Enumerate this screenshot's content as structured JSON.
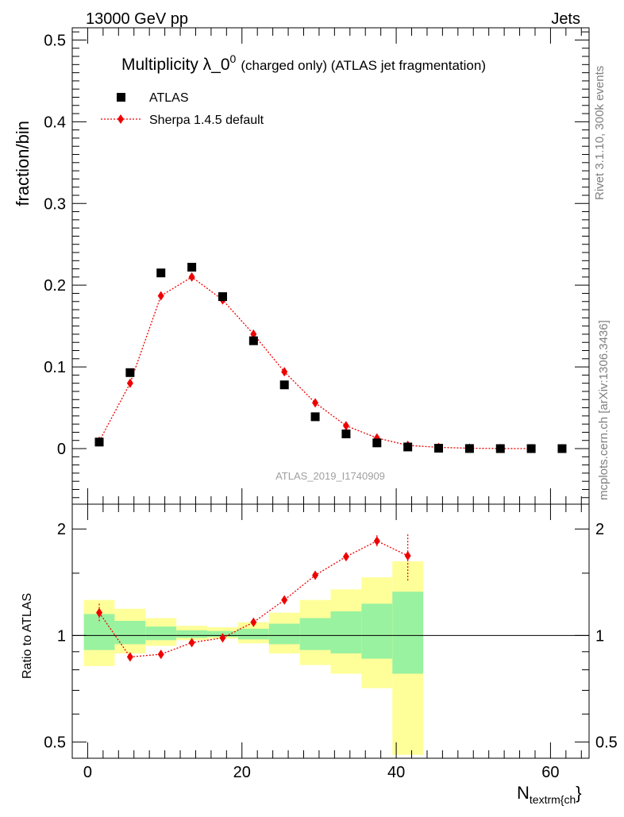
{
  "header": {
    "energy_label": "13000 GeV pp",
    "category_label": "Jets",
    "side_info": "Rivet 3.1.10,  300k events",
    "side_ref": "mcplots.cern.ch [arXiv:1306.3436]",
    "watermark": "ATLAS_2019_I1740909"
  },
  "chart_data": {
    "type": "scatter",
    "title": "Multiplicity λ_0",
    "title_superscript": "0",
    "title_suffix": "(charged only) (ATLAS jet fragmentation)",
    "ylabel": "fraction/bin",
    "xlabel_main": "N",
    "xlabel_sub": "textrm{ch",
    "xlabel_close": "}",
    "ratio_ylabel": "Ratio to ATLAS",
    "xlim": [
      -2,
      65
    ],
    "ylim": [
      -0.068,
      0.515
    ],
    "ratio_ylim": [
      0.45,
      2.35
    ],
    "x_ticks": [
      "0",
      "20",
      "40",
      "60"
    ],
    "y_ticks": [
      "0",
      "0.1",
      "0.2",
      "0.3",
      "0.4",
      "0.5"
    ],
    "ratio_ticks": [
      "0.5",
      "1",
      "2"
    ],
    "legend": {
      "data_label": "ATLAS",
      "mc_label": "Sherpa 1.4.5 default",
      "placement": "top-left"
    },
    "series": [
      {
        "name": "ATLAS",
        "x": [
          1.5,
          5.5,
          9.5,
          13.5,
          17.5,
          21.5,
          25.5,
          29.5,
          33.5,
          37.5,
          41.5,
          45.5,
          49.5,
          53.5,
          57.5,
          61.5
        ],
        "values": [
          0.008,
          0.093,
          0.215,
          0.222,
          0.186,
          0.132,
          0.078,
          0.039,
          0.018,
          0.007,
          0.002,
          0.0005,
          0.0001,
          0.0,
          0.0,
          0.0
        ]
      },
      {
        "name": "Sherpa 1.4.5 default",
        "x": [
          1.5,
          5.5,
          9.5,
          13.5,
          17.5,
          21.5,
          25.5,
          29.5,
          33.5,
          37.5,
          41.5,
          45.5,
          49.5,
          53.5,
          57.5
        ],
        "values": [
          0.009,
          0.08,
          0.187,
          0.21,
          0.182,
          0.14,
          0.094,
          0.056,
          0.028,
          0.013,
          0.004,
          0.0015,
          0.0005,
          0.0001,
          0.0
        ]
      }
    ],
    "ratio": {
      "x": [
        1.5,
        5.5,
        9.5,
        13.5,
        17.5,
        21.5,
        25.5,
        29.5,
        33.5,
        37.5,
        41.5
      ],
      "values": [
        1.16,
        0.87,
        0.885,
        0.955,
        0.985,
        1.09,
        1.26,
        1.48,
        1.67,
        1.85,
        1.68
      ],
      "err": [
        0.07,
        0.02,
        0.015,
        0.012,
        0.012,
        0.015,
        0.02,
        0.03,
        0.04,
        0.07,
        0.25
      ]
    },
    "bands": {
      "edges": [
        -0.5,
        3.5,
        7.5,
        11.5,
        15.5,
        19.5,
        23.5,
        27.5,
        31.5,
        35.5,
        39.5,
        43.5
      ],
      "green_low": [
        0.91,
        0.945,
        0.97,
        0.985,
        0.99,
        0.975,
        0.945,
        0.91,
        0.89,
        0.86,
        0.78
      ],
      "green_high": [
        1.15,
        1.1,
        1.06,
        1.035,
        1.03,
        1.045,
        1.08,
        1.12,
        1.17,
        1.23,
        1.33
      ],
      "yellow_low": [
        0.82,
        0.89,
        0.935,
        0.97,
        0.98,
        0.95,
        0.89,
        0.825,
        0.78,
        0.71,
        0.46
      ],
      "yellow_high": [
        1.26,
        1.19,
        1.12,
        1.065,
        1.055,
        1.09,
        1.16,
        1.26,
        1.35,
        1.46,
        1.62
      ]
    },
    "colors": {
      "mc": "#ee0000",
      "data": "#000000",
      "green": "#99f29f",
      "yellow": "#ffff99"
    }
  }
}
